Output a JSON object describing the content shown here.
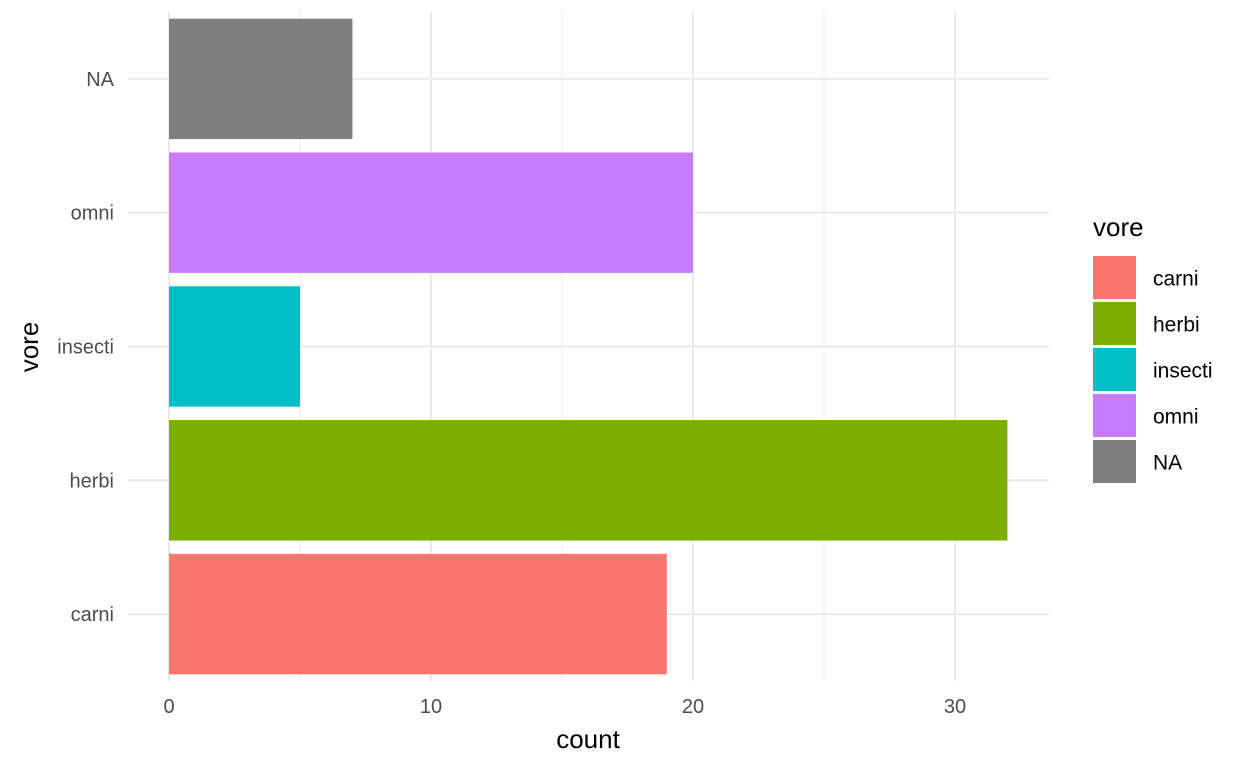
{
  "chart_data": {
    "type": "bar",
    "orientation": "horizontal",
    "categories": [
      "carni",
      "herbi",
      "insecti",
      "omni",
      "NA"
    ],
    "values": [
      19,
      32,
      5,
      20,
      7
    ],
    "colors": [
      "#F8766D",
      "#7CAE00",
      "#00BFC4",
      "#C77CFF",
      "#7F7F7F"
    ],
    "xlabel": "count",
    "ylabel": "vore",
    "xlim": [
      0,
      33.6
    ],
    "xticks": [
      0,
      10,
      20,
      30
    ],
    "grid": true,
    "legend": {
      "title": "vore",
      "placement": "right",
      "entries": [
        "carni",
        "herbi",
        "insecti",
        "omni",
        "NA"
      ]
    }
  }
}
